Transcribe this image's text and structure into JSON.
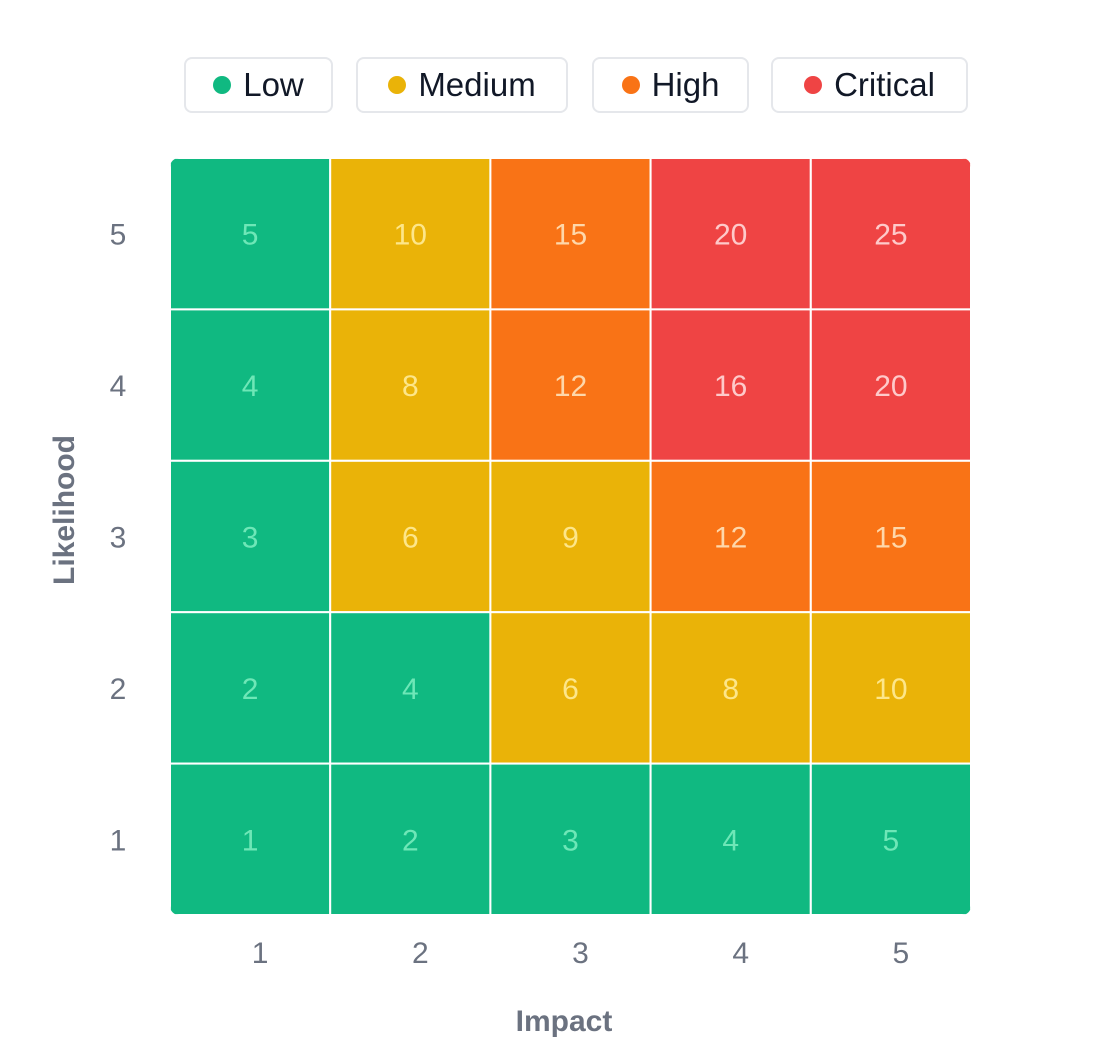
{
  "legend": [
    {
      "label": "Low",
      "color": "#10b981"
    },
    {
      "label": "Medium",
      "color": "#eab308"
    },
    {
      "label": "High",
      "color": "#f97316"
    },
    {
      "label": "Critical",
      "color": "#ef4444"
    }
  ],
  "chart_data": {
    "type": "heatmap",
    "xlabel": "Impact",
    "ylabel": "Likelihood",
    "x_ticks": [
      "1",
      "2",
      "3",
      "4",
      "5"
    ],
    "y_ticks": [
      "1",
      "2",
      "3",
      "4",
      "5"
    ],
    "rows": [
      {
        "likelihood": 5,
        "values": [
          5,
          10,
          15,
          20,
          25
        ],
        "levels": [
          "Low",
          "Medium",
          "High",
          "Critical",
          "Critical"
        ]
      },
      {
        "likelihood": 4,
        "values": [
          4,
          8,
          12,
          16,
          20
        ],
        "levels": [
          "Low",
          "Medium",
          "High",
          "Critical",
          "Critical"
        ]
      },
      {
        "likelihood": 3,
        "values": [
          3,
          6,
          9,
          12,
          15
        ],
        "levels": [
          "Low",
          "Medium",
          "Medium",
          "High",
          "High"
        ]
      },
      {
        "likelihood": 2,
        "values": [
          2,
          4,
          6,
          8,
          10
        ],
        "levels": [
          "Low",
          "Low",
          "Medium",
          "Medium",
          "Medium"
        ]
      },
      {
        "likelihood": 1,
        "values": [
          1,
          2,
          3,
          4,
          5
        ],
        "levels": [
          "Low",
          "Low",
          "Low",
          "Low",
          "Low"
        ]
      }
    ],
    "level_colors": {
      "Low": "#10b981",
      "Medium": "#eab308",
      "High": "#f97316",
      "Critical": "#ef4444"
    },
    "label_colors": {
      "Low": "#6ee7b7",
      "Medium": "#fde68a",
      "High": "#fed7aa",
      "Critical": "#fecaca"
    },
    "legend_position": "top"
  }
}
